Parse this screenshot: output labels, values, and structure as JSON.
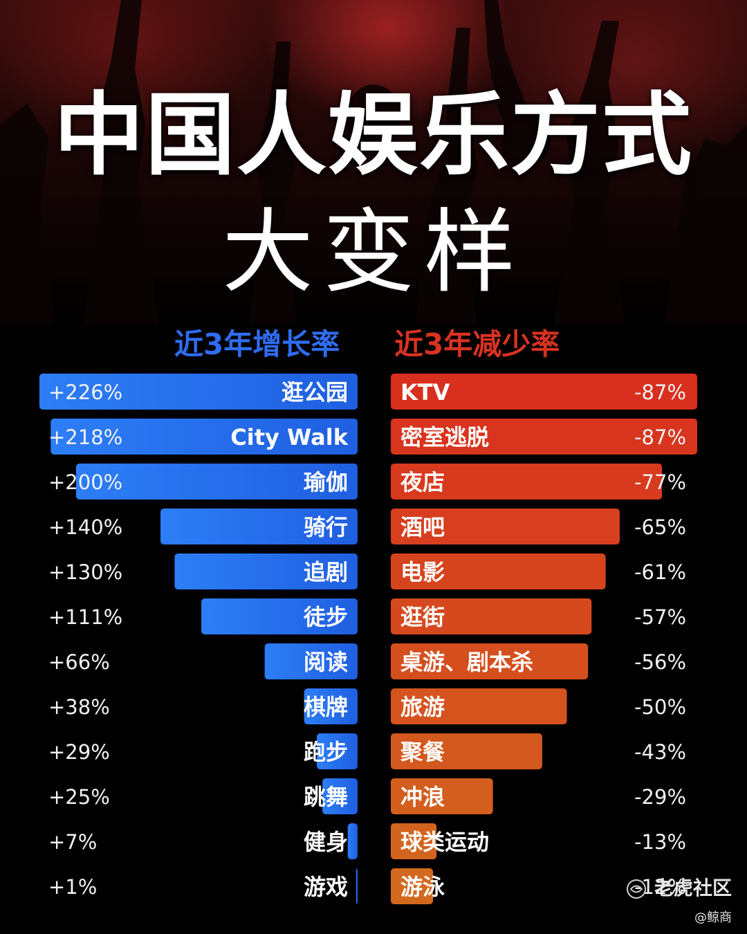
{
  "title": "中国人娱乐方式",
  "subtitle": "大变样",
  "colors": {
    "growth_start": "#2d7ef7",
    "growth_end": "#1f5fe0",
    "decline_top": "#d92f1e",
    "decline_bottom": "#d2691e"
  },
  "chart_data": [
    {
      "type": "bar",
      "orientation": "horizontal",
      "direction": "right-aligned",
      "header": "近3年增长率",
      "categories": [
        "逛公园",
        "City Walk",
        "瑜伽",
        "骑行",
        "追剧",
        "徒步",
        "阅读",
        "棋牌",
        "跑步",
        "跳舞",
        "健身",
        "游戏"
      ],
      "values": [
        226,
        218,
        200,
        140,
        130,
        111,
        66,
        38,
        29,
        25,
        7,
        1
      ],
      "value_labels": [
        "+226%",
        "+218%",
        "+200%",
        "+140%",
        "+130%",
        "+111%",
        "+66%",
        "+38%",
        "+29%",
        "+25%",
        "+7%",
        "+1%"
      ],
      "unit": "%"
    },
    {
      "type": "bar",
      "orientation": "horizontal",
      "direction": "left-aligned",
      "header": "近3年减少率",
      "categories": [
        "KTV",
        "密室逃脱",
        "夜店",
        "酒吧",
        "电影",
        "逛街",
        "桌游、剧本杀",
        "旅游",
        "聚餐",
        "冲浪",
        "球类运动",
        "游泳"
      ],
      "values": [
        -87,
        -87,
        -77,
        -65,
        -61,
        -57,
        -56,
        -50,
        -43,
        -29,
        -13,
        -12
      ],
      "value_labels": [
        "-87%",
        "-87%",
        "-77%",
        "-65%",
        "-61%",
        "-57%",
        "-56%",
        "-50%",
        "-43%",
        "-29%",
        "-13%",
        "-12%"
      ],
      "unit": "%"
    }
  ],
  "watermark": {
    "main": "老虎社区",
    "sub": "@鲸商"
  }
}
